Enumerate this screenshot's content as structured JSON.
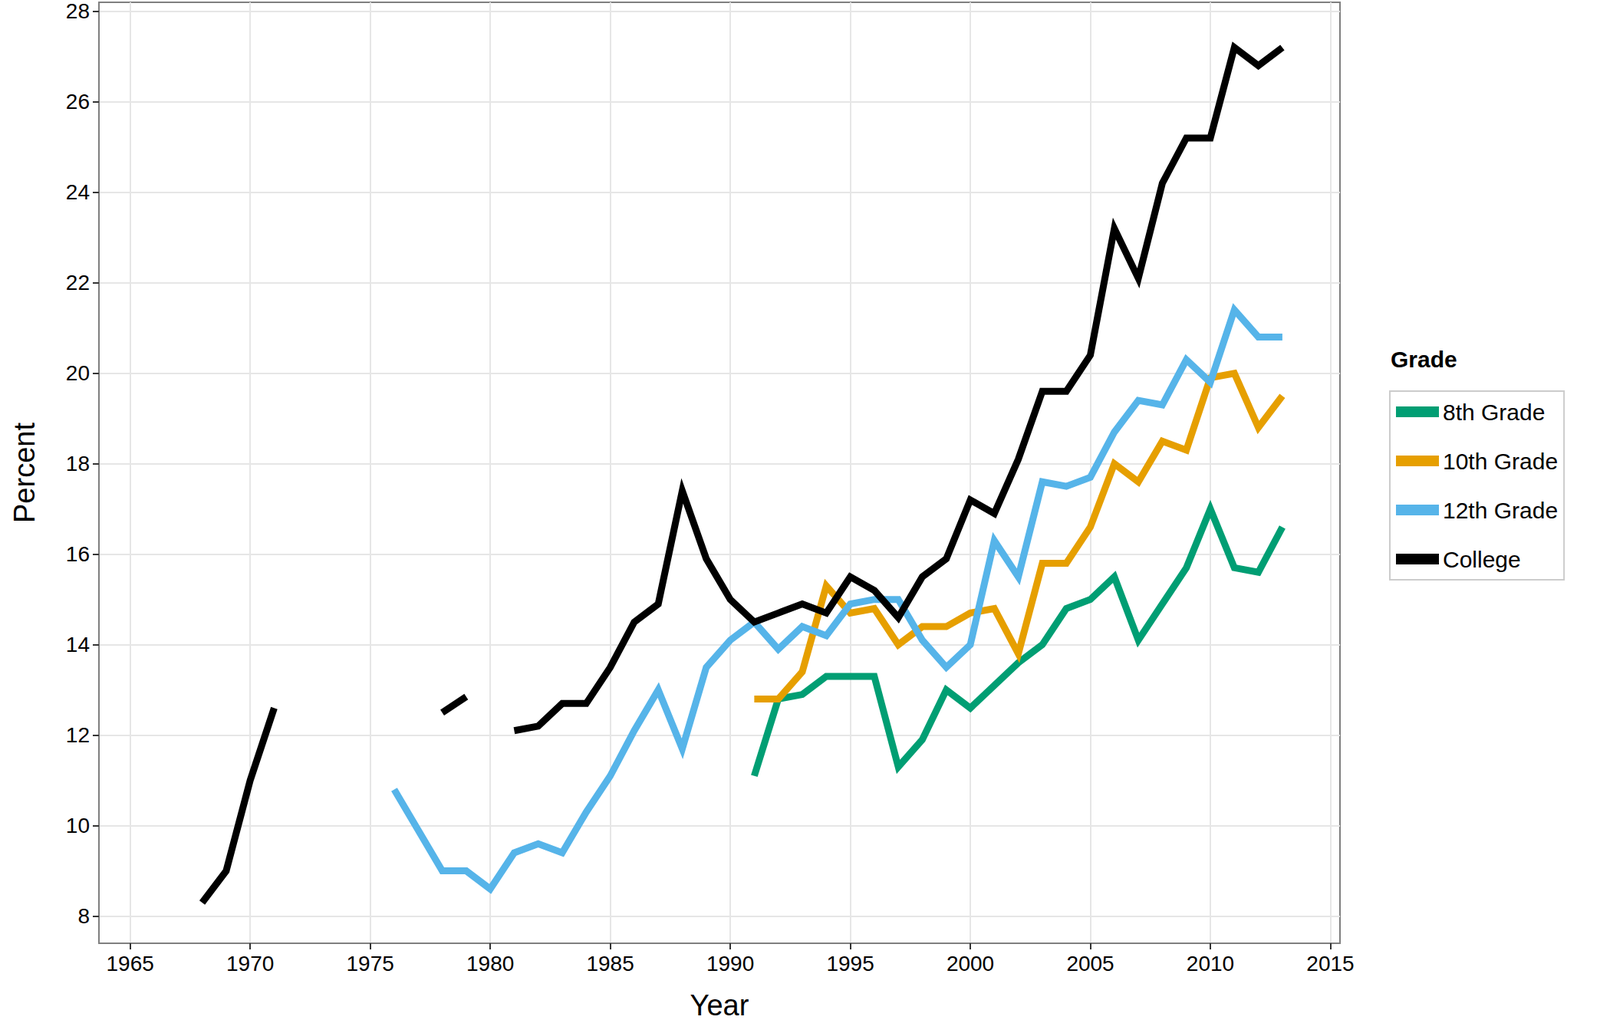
{
  "chart_data": {
    "type": "line",
    "x_label": "Year",
    "y_label": "Percent",
    "legend_title": "Grade",
    "legend": "right",
    "grid": true,
    "xlim": [
      1963.7,
      2015.4
    ],
    "xticks": [
      1965,
      1970,
      1975,
      1980,
      1985,
      1990,
      1995,
      2000,
      2005,
      2010,
      2015
    ],
    "ylim": [
      7.4,
      28.2
    ],
    "yticks": [
      8,
      10,
      12,
      14,
      16,
      18,
      20,
      22,
      24,
      26,
      28
    ],
    "x": [
      1968,
      1969,
      1970,
      1971,
      1972,
      1973,
      1974,
      1975,
      1976,
      1977,
      1978,
      1979,
      1980,
      1981,
      1982,
      1983,
      1984,
      1985,
      1986,
      1987,
      1988,
      1989,
      1990,
      1991,
      1992,
      1993,
      1994,
      1995,
      1996,
      1997,
      1998,
      1999,
      2000,
      2001,
      2002,
      2003,
      2004,
      2005,
      2006,
      2007,
      2008,
      2009,
      2010,
      2011,
      2012,
      2013
    ],
    "series": [
      {
        "name": "8th Grade",
        "color": "#009E73",
        "values": [
          null,
          null,
          null,
          null,
          null,
          null,
          null,
          null,
          null,
          null,
          null,
          null,
          null,
          null,
          null,
          null,
          null,
          null,
          null,
          null,
          null,
          null,
          null,
          11.1,
          12.8,
          12.9,
          13.3,
          13.3,
          13.3,
          11.3,
          11.9,
          13.0,
          12.6,
          13.1,
          13.6,
          14.0,
          14.8,
          15.0,
          15.5,
          14.1,
          14.9,
          15.7,
          17.0,
          15.7,
          15.6,
          16.6
        ]
      },
      {
        "name": "10th Grade",
        "color": "#E69F00",
        "values": [
          null,
          null,
          null,
          null,
          null,
          null,
          null,
          null,
          null,
          null,
          null,
          null,
          null,
          null,
          null,
          null,
          null,
          null,
          null,
          null,
          null,
          null,
          null,
          12.8,
          12.8,
          13.4,
          15.3,
          14.7,
          14.8,
          14.0,
          14.4,
          14.4,
          14.7,
          14.8,
          13.8,
          15.8,
          15.8,
          16.6,
          18.0,
          17.6,
          18.5,
          18.3,
          19.9,
          20.0,
          18.8,
          19.5
        ]
      },
      {
        "name": "12th Grade",
        "color": "#56B4E9",
        "values": [
          null,
          null,
          null,
          null,
          null,
          null,
          null,
          null,
          10.8,
          9.9,
          9.0,
          9.0,
          8.6,
          9.4,
          9.6,
          9.4,
          10.3,
          11.1,
          12.1,
          13.0,
          11.7,
          13.5,
          14.1,
          14.5,
          13.9,
          14.4,
          14.2,
          14.9,
          15.0,
          15.0,
          14.1,
          13.5,
          14.0,
          16.3,
          15.5,
          17.6,
          17.5,
          17.7,
          18.7,
          19.4,
          19.3,
          20.3,
          19.8,
          21.4,
          20.8,
          20.8
        ]
      },
      {
        "name": "College",
        "color": "#000000",
        "values": [
          8.3,
          9.0,
          11.0,
          12.6,
          null,
          null,
          null,
          null,
          null,
          null,
          12.5,
          12.85,
          null,
          12.1,
          12.2,
          12.7,
          12.7,
          13.5,
          14.5,
          14.9,
          17.4,
          15.9,
          15.0,
          14.5,
          14.7,
          14.9,
          14.7,
          15.5,
          15.2,
          14.6,
          15.5,
          15.9,
          17.2,
          16.9,
          18.1,
          19.6,
          19.6,
          20.4,
          23.2,
          22.1,
          24.2,
          25.2,
          25.2,
          27.2,
          26.8,
          27.2
        ]
      }
    ]
  }
}
